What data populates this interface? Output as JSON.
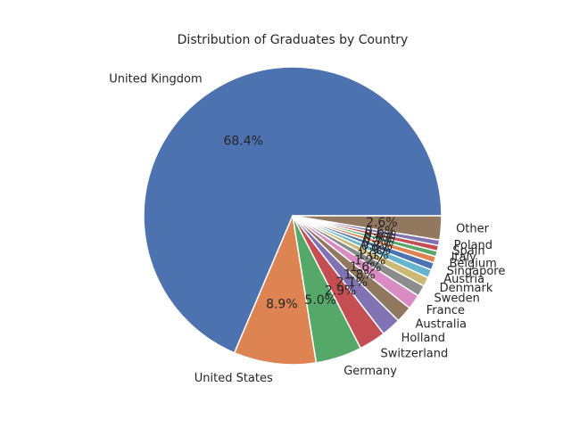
{
  "chart_data": {
    "type": "pie",
    "title": "Distribution of Graduates by Country",
    "start_angle": 0,
    "direction": "counterclockwise",
    "slices": [
      {
        "label": "United Kingdom",
        "value": 68.4,
        "pct_text": "68.4%",
        "color": "#4C72B0"
      },
      {
        "label": "United States",
        "value": 8.9,
        "pct_text": "8.9%",
        "color": "#DD8452"
      },
      {
        "label": "Germany",
        "value": 5.0,
        "pct_text": "5.0%",
        "color": "#55A868"
      },
      {
        "label": "Switzerland",
        "value": 2.9,
        "pct_text": "2.9%",
        "color": "#C44E52"
      },
      {
        "label": "Holland",
        "value": 2.1,
        "pct_text": "2.1%",
        "color": "#8172B3"
      },
      {
        "label": "Australia",
        "value": 1.8,
        "pct_text": "1.8%",
        "color": "#937860"
      },
      {
        "label": "France",
        "value": 1.6,
        "pct_text": "1.6%",
        "color": "#DA8BC3"
      },
      {
        "label": "Sweden",
        "value": 1.2,
        "pct_text": "1.2%",
        "color": "#8C8C8C"
      },
      {
        "label": "Denmark",
        "value": 1.0,
        "pct_text": "1.0%",
        "color": "#CCB974"
      },
      {
        "label": "Austria",
        "value": 0.9,
        "pct_text": "0.9%",
        "color": "#64B5CD"
      },
      {
        "label": "Singapore",
        "value": 0.8,
        "pct_text": "0.8%",
        "color": "#4C72B0"
      },
      {
        "label": "Belgium",
        "value": 0.7,
        "pct_text": "0.7%",
        "color": "#DD8452"
      },
      {
        "label": "Italy",
        "value": 0.6,
        "pct_text": "0.6%",
        "color": "#55A868"
      },
      {
        "label": "Spain",
        "value": 0.6,
        "pct_text": "0.6%",
        "color": "#C44E52"
      },
      {
        "label": "Poland",
        "value": 0.6,
        "pct_text": "0.6%",
        "color": "#8172B3"
      },
      {
        "label": "Other",
        "value": 2.6,
        "pct_text": "2.6%",
        "color": "#937860"
      }
    ]
  }
}
